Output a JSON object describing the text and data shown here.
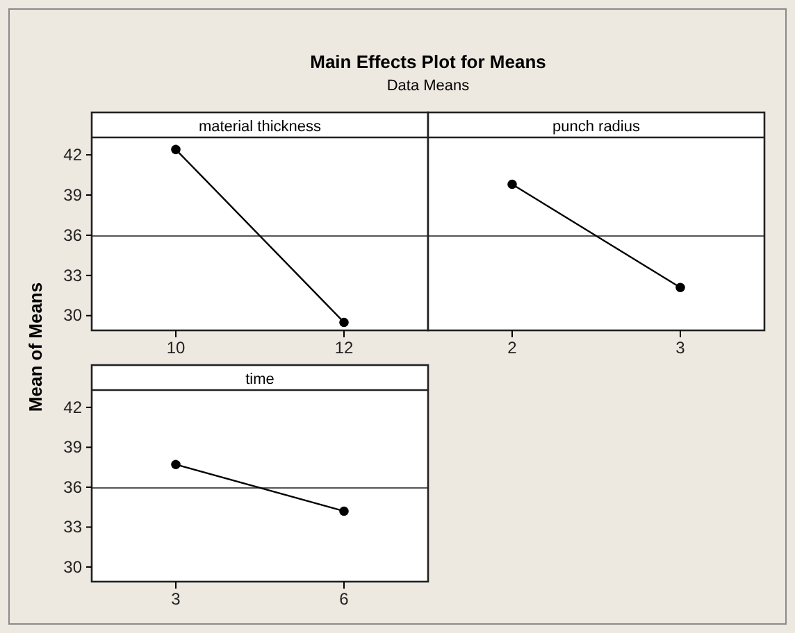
{
  "chart_data": [
    {
      "type": "line",
      "title": "Main Effects Plot for Means",
      "subtitle": "Data Means",
      "ylabel": "Mean of Means",
      "xlabel": "material thickness",
      "categories": [
        "10",
        "12"
      ],
      "series": [
        {
          "color": "#000000",
          "values": [
            42.4,
            29.5
          ]
        }
      ],
      "ylim": [
        28.9,
        43.3
      ],
      "yticks": [
        30,
        33,
        36,
        39,
        42
      ],
      "ref_lines": [
        {
          "axis": "y",
          "value": 35.95,
          "color": "#555555"
        }
      ],
      "marker": "circle",
      "line_style": "solid"
    },
    {
      "type": "line",
      "xlabel": "punch radius",
      "categories": [
        "2",
        "3"
      ],
      "series": [
        {
          "color": "#000000",
          "values": [
            39.8,
            32.1
          ]
        }
      ],
      "ylim": [
        28.9,
        43.3
      ],
      "tick_labels": "x",
      "ref_lines": [
        {
          "axis": "y",
          "value": 35.95,
          "color": "#555555"
        }
      ],
      "marker": "circle",
      "line_style": "solid"
    },
    {
      "type": "line",
      "xlabel": "time",
      "categories": [
        "3",
        "6"
      ],
      "series": [
        {
          "color": "#000000",
          "values": [
            37.7,
            34.2
          ]
        }
      ],
      "ylim": [
        28.9,
        43.3
      ],
      "yticks": [
        30,
        33,
        36,
        39,
        42
      ],
      "ref_lines": [
        {
          "axis": "y",
          "value": 35.95,
          "color": "#555555"
        }
      ],
      "marker": "circle",
      "line_style": "solid"
    }
  ]
}
